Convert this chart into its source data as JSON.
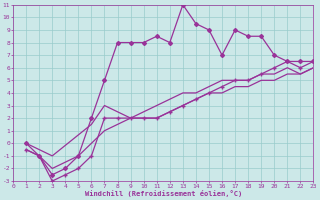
{
  "bg_color": "#cce8e8",
  "line_color": "#993399",
  "grid_color": "#99cccc",
  "xlabel": "Windchill (Refroidissement éolien,°C)",
  "ylim": [
    -3,
    11
  ],
  "xlim": [
    0,
    23
  ],
  "yticks": [
    -3,
    -2,
    -1,
    0,
    1,
    2,
    3,
    4,
    5,
    6,
    7,
    8,
    9,
    10,
    11
  ],
  "xticks": [
    0,
    1,
    2,
    3,
    4,
    5,
    6,
    7,
    8,
    9,
    10,
    11,
    12,
    13,
    14,
    15,
    16,
    17,
    18,
    19,
    20,
    21,
    22,
    23
  ],
  "line1_x": [
    1,
    2,
    3,
    4,
    5,
    6,
    7,
    8,
    9,
    10,
    11,
    12,
    13,
    14,
    15,
    16,
    17,
    18,
    19,
    20,
    21,
    22,
    23
  ],
  "line1_y": [
    0,
    -1,
    -2.5,
    -2,
    -1,
    2,
    5,
    8,
    8,
    8,
    8.5,
    8,
    11,
    9.5,
    9,
    7,
    9,
    8.5,
    8.5,
    7,
    6.5,
    6.5,
    6.5
  ],
  "line2_x": [
    1,
    2,
    3,
    4,
    5,
    6,
    7,
    8,
    9,
    10,
    11,
    12,
    13,
    14,
    15,
    16,
    17,
    18,
    19,
    20,
    21,
    22,
    23
  ],
  "line2_y": [
    -0.5,
    -1,
    -3,
    -2.5,
    -2,
    -1,
    2,
    2,
    2,
    2,
    2,
    2.5,
    3,
    3.5,
    4,
    4.5,
    5,
    5,
    5.5,
    6,
    6.5,
    6,
    6.5
  ],
  "line3_x": [
    1,
    2,
    3,
    4,
    5,
    6,
    7,
    8,
    9,
    10,
    11,
    12,
    13,
    14,
    15,
    16,
    17,
    18,
    19,
    20,
    21,
    22,
    23
  ],
  "line3_y": [
    -0.5,
    -1,
    -2,
    -1.5,
    -1,
    0,
    1,
    1.5,
    2,
    2.5,
    3,
    3.5,
    4,
    4,
    4.5,
    5,
    5,
    5,
    5.5,
    5.5,
    6,
    5.5,
    6
  ],
  "line4_x": [
    1,
    2,
    3,
    6,
    7,
    8,
    9,
    10,
    11,
    12,
    13,
    14,
    15,
    16,
    17,
    18,
    19,
    20,
    21,
    22,
    23
  ],
  "line4_y": [
    0,
    -0.5,
    -1,
    1.5,
    3,
    2.5,
    2,
    2,
    2,
    2.5,
    3,
    3.5,
    4,
    4,
    4.5,
    4.5,
    5,
    5,
    5.5,
    5.5,
    6
  ]
}
